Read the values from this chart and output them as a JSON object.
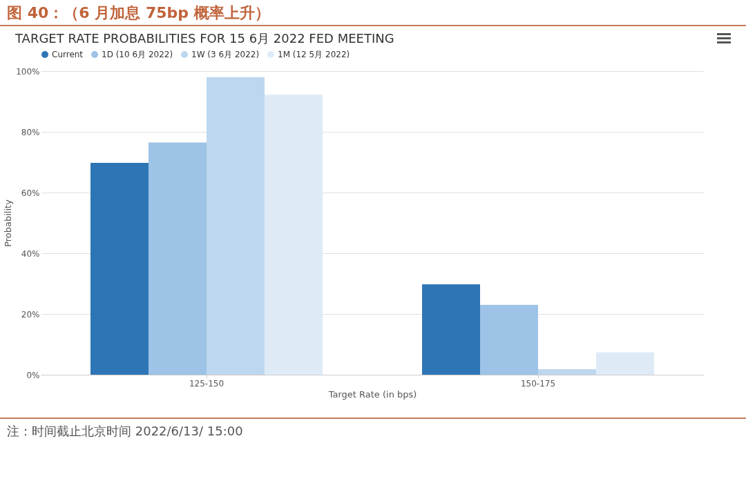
{
  "chart_data": {
    "type": "bar",
    "title": "图 40：（6 月加息 75bp 概率上升）",
    "subtitle": "TARGET RATE PROBABILITIES FOR 15 6月 2022 FED MEETING",
    "xlabel": "Target Rate (in bps)",
    "ylabel": "Probability",
    "categories": [
      "125-150",
      "150-175"
    ],
    "series": [
      {
        "name": "Current",
        "color": "#2e75b6",
        "values": [
          69.8,
          29.8
        ]
      },
      {
        "name": "1D (10 6月 2022)",
        "color": "#9dc3e6",
        "values": [
          76.5,
          23.0
        ]
      },
      {
        "name": "1W (3 6月 2022)",
        "color": "#bdd7ee",
        "values": [
          98.0,
          1.8
        ]
      },
      {
        "name": "1M (12 5月 2022)",
        "color": "#deebf7",
        "values": [
          92.2,
          7.4
        ]
      }
    ],
    "ylim": [
      0,
      100
    ],
    "yticks": [
      {
        "value": 0,
        "label": "0%"
      },
      {
        "value": 20,
        "label": "20%"
      },
      {
        "value": 40,
        "label": "40%"
      },
      {
        "value": 60,
        "label": "60%"
      },
      {
        "value": 80,
        "label": "80%"
      },
      {
        "value": 100,
        "label": "100%"
      }
    ],
    "grid": "y",
    "legend": "top",
    "annotations": [
      "注：时间截止北京时间 2022/6/13/ 15:00"
    ]
  }
}
